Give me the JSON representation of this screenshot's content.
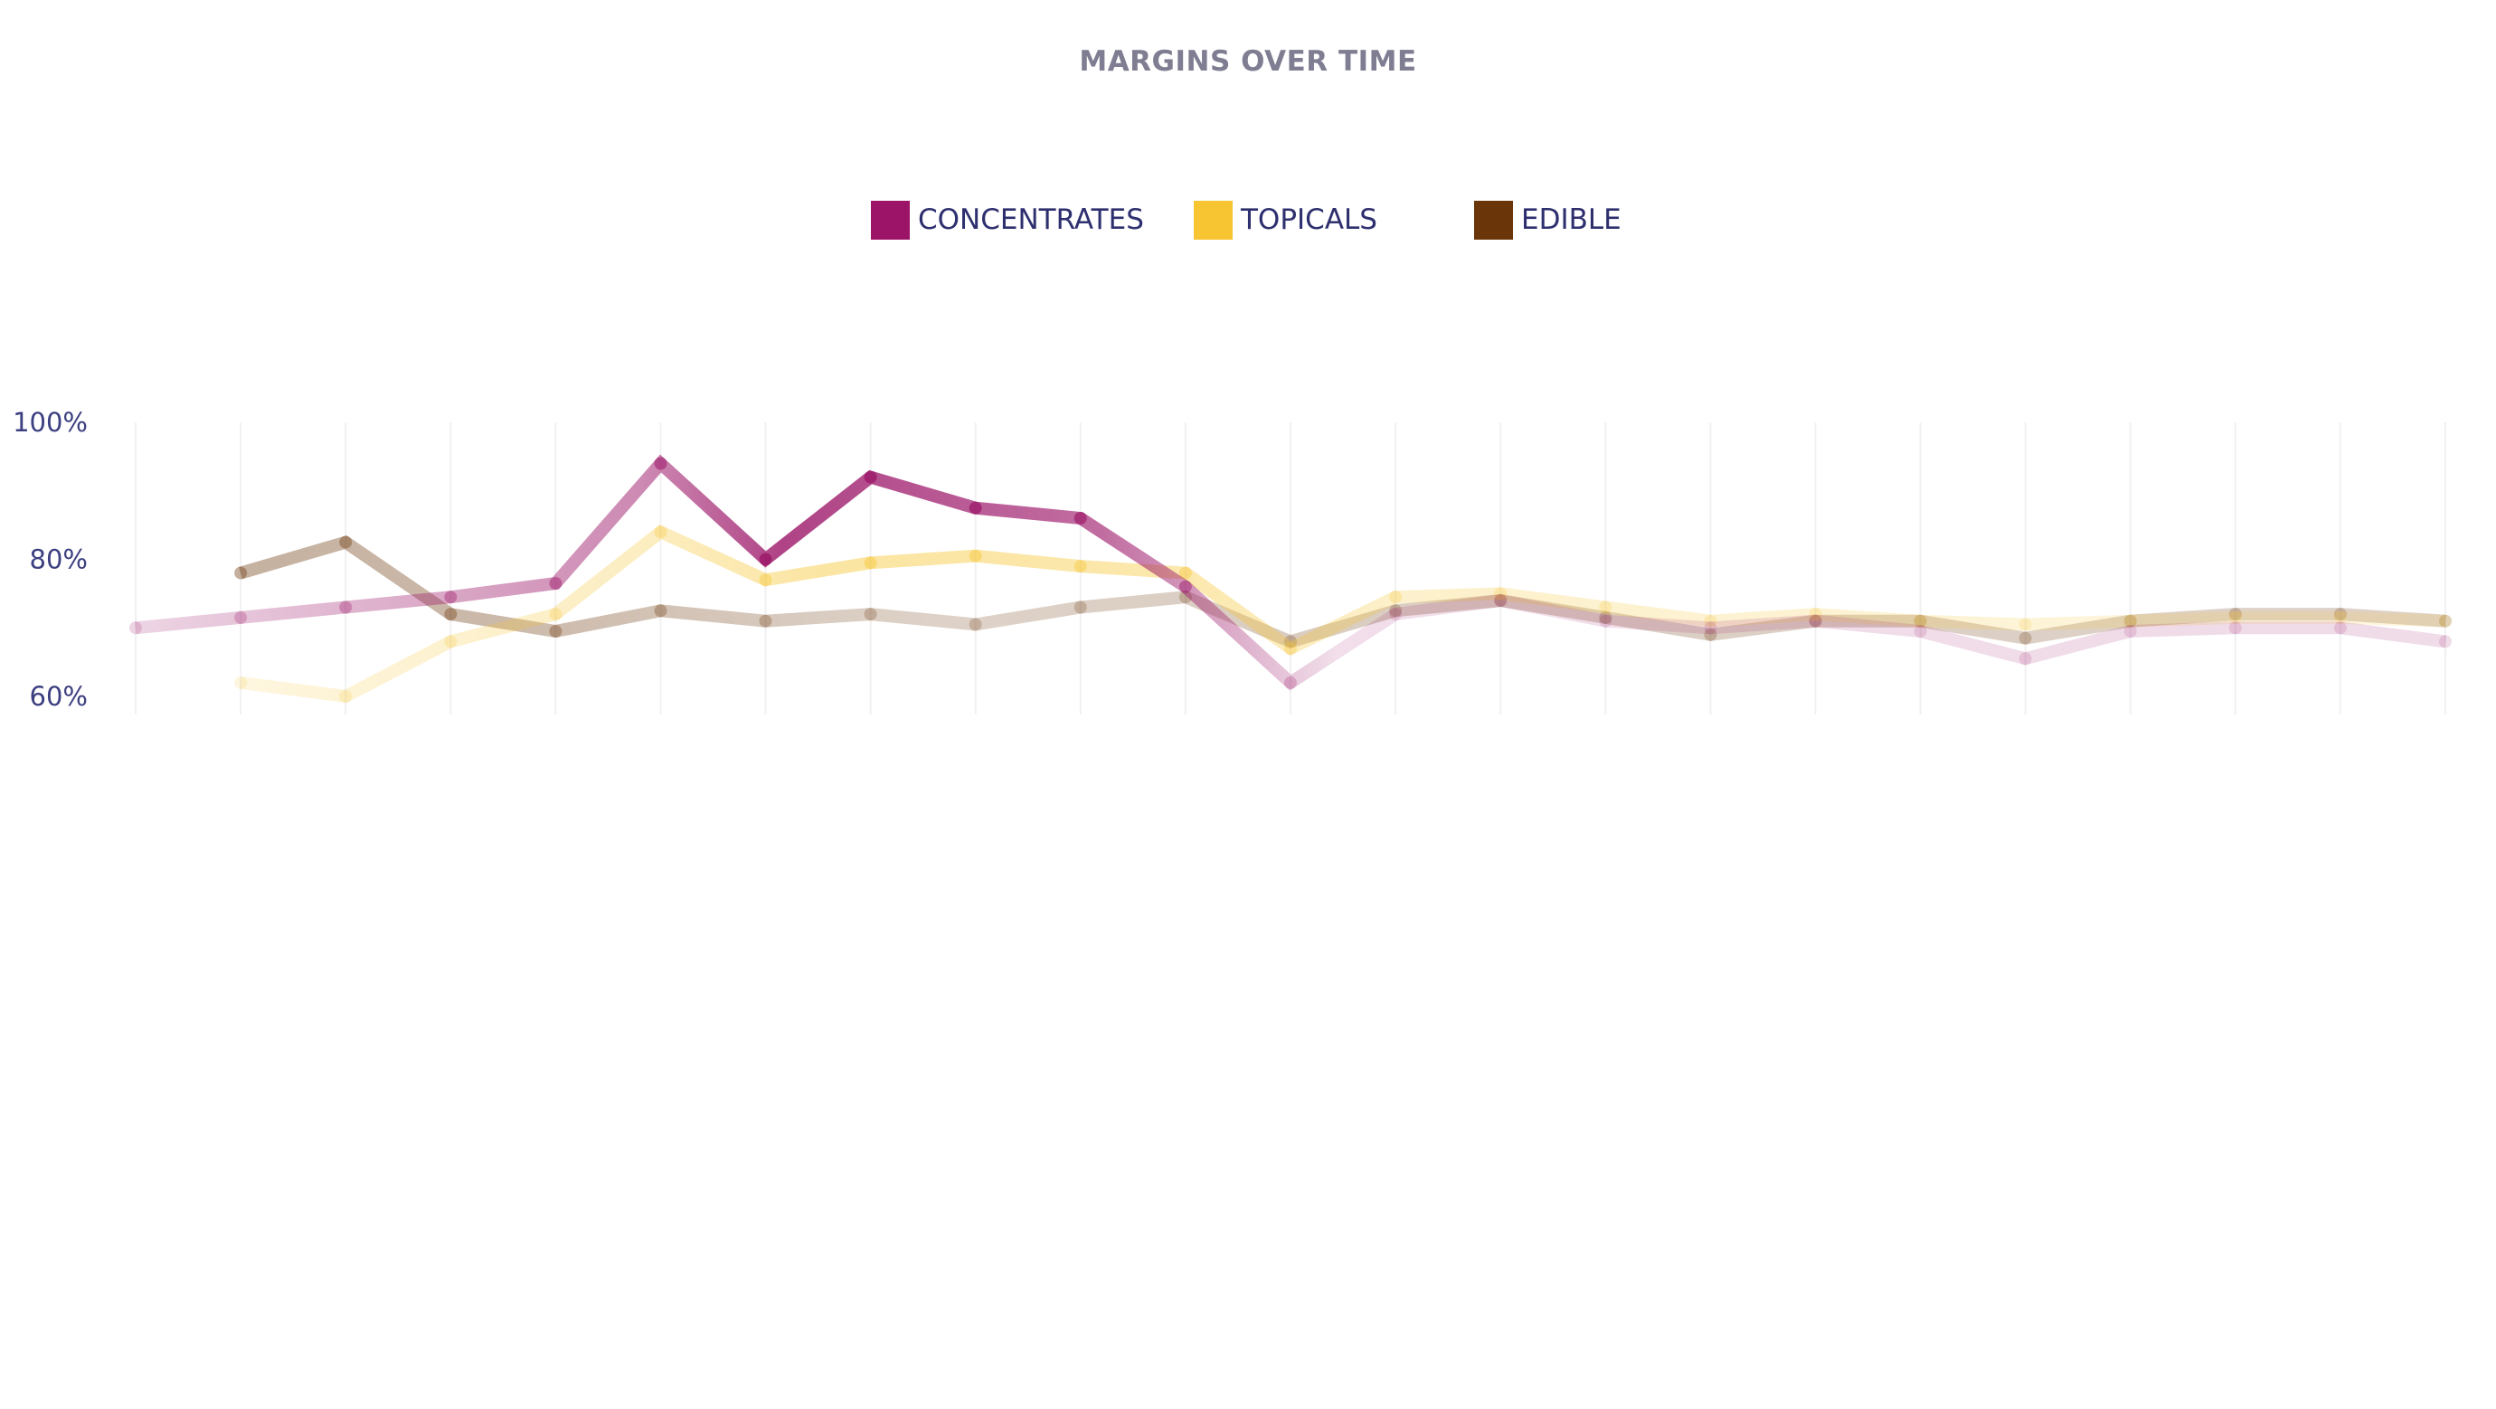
{
  "title": "MARGINS OVER TIME",
  "colors": {
    "concentrates": "#9b1467",
    "topicals": "#f6c531",
    "edible": "#6a3508",
    "grid": "#e6e6ea",
    "title": "#7e7d92",
    "axis_text": "#3c3f80"
  },
  "legend": [
    {
      "label": "CONCENTRATES",
      "color": "#9b1467"
    },
    {
      "label": "TOPICALS",
      "color": "#f6c531"
    },
    {
      "label": "EDIBLE",
      "color": "#6a3508"
    }
  ],
  "chart_data": {
    "type": "line",
    "title": "MARGINS OVER TIME",
    "xlabel": "",
    "ylabel": "",
    "y_ticks": [
      "100%",
      "80%",
      "60%"
    ],
    "y_tick_values": [
      100,
      80,
      60
    ],
    "ylim": [
      60,
      100
    ],
    "grid": "vertical",
    "legend_position": "top-center",
    "x_count": 23,
    "series": [
      {
        "name": "CONCENTRATES",
        "color": "#9b1467",
        "values": [
          70,
          71.5,
          73,
          74.5,
          76.5,
          94,
          80,
          92,
          87.5,
          86,
          76,
          62,
          72,
          74,
          71,
          70,
          71,
          69.5,
          65.5,
          69.5,
          70,
          70,
          68
        ]
      },
      {
        "name": "TOPICALS",
        "color": "#f6c531",
        "values": [
          null,
          62,
          60,
          68,
          72,
          84,
          77,
          79.5,
          80.5,
          79,
          78,
          67,
          74.5,
          75,
          73,
          71,
          72,
          71,
          70.5,
          71,
          71.5,
          71.5,
          71
        ]
      },
      {
        "name": "EDIBLE",
        "color": "#6a3508",
        "values": [
          null,
          78,
          82.5,
          72,
          69.5,
          72.5,
          71,
          72,
          70.5,
          73,
          74.5,
          68,
          72.5,
          74,
          71.5,
          69,
          71,
          71,
          68.5,
          71,
          72,
          72,
          71
        ]
      }
    ]
  }
}
